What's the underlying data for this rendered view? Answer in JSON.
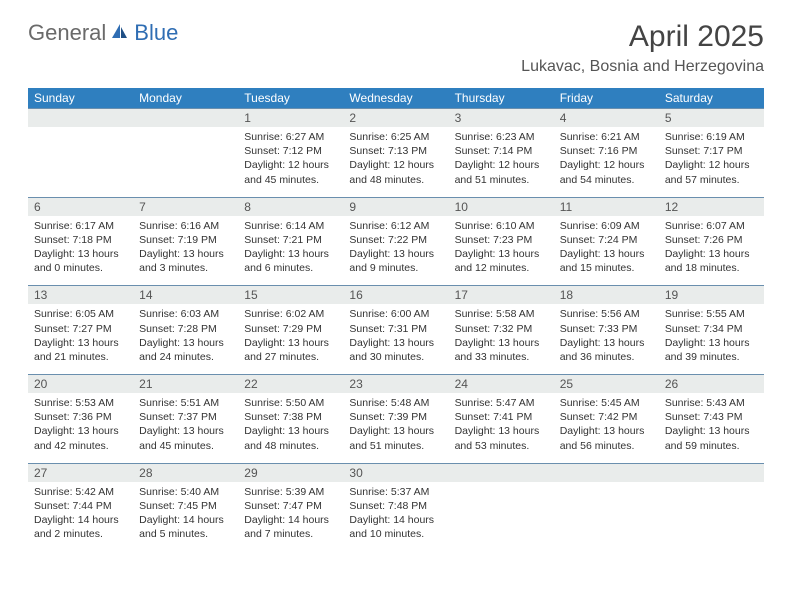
{
  "brand": {
    "part1": "General",
    "part2": "Blue"
  },
  "title": "April 2025",
  "location": "Lukavac, Bosnia and Herzegovina",
  "colors": {
    "header_bg": "#2f7fbf",
    "daynum_bg": "#e9eceb",
    "row_border": "#6a8fae",
    "brand_gray": "#6a6a6a",
    "brand_blue": "#2f6db3"
  },
  "weekdays": [
    "Sunday",
    "Monday",
    "Tuesday",
    "Wednesday",
    "Thursday",
    "Friday",
    "Saturday"
  ],
  "weeks": [
    {
      "nums": [
        "",
        "",
        "1",
        "2",
        "3",
        "4",
        "5"
      ],
      "cells": [
        null,
        null,
        {
          "sr": "6:27 AM",
          "ss": "7:12 PM",
          "dl": "12 hours and 45 minutes."
        },
        {
          "sr": "6:25 AM",
          "ss": "7:13 PM",
          "dl": "12 hours and 48 minutes."
        },
        {
          "sr": "6:23 AM",
          "ss": "7:14 PM",
          "dl": "12 hours and 51 minutes."
        },
        {
          "sr": "6:21 AM",
          "ss": "7:16 PM",
          "dl": "12 hours and 54 minutes."
        },
        {
          "sr": "6:19 AM",
          "ss": "7:17 PM",
          "dl": "12 hours and 57 minutes."
        }
      ]
    },
    {
      "nums": [
        "6",
        "7",
        "8",
        "9",
        "10",
        "11",
        "12"
      ],
      "cells": [
        {
          "sr": "6:17 AM",
          "ss": "7:18 PM",
          "dl": "13 hours and 0 minutes."
        },
        {
          "sr": "6:16 AM",
          "ss": "7:19 PM",
          "dl": "13 hours and 3 minutes."
        },
        {
          "sr": "6:14 AM",
          "ss": "7:21 PM",
          "dl": "13 hours and 6 minutes."
        },
        {
          "sr": "6:12 AM",
          "ss": "7:22 PM",
          "dl": "13 hours and 9 minutes."
        },
        {
          "sr": "6:10 AM",
          "ss": "7:23 PM",
          "dl": "13 hours and 12 minutes."
        },
        {
          "sr": "6:09 AM",
          "ss": "7:24 PM",
          "dl": "13 hours and 15 minutes."
        },
        {
          "sr": "6:07 AM",
          "ss": "7:26 PM",
          "dl": "13 hours and 18 minutes."
        }
      ]
    },
    {
      "nums": [
        "13",
        "14",
        "15",
        "16",
        "17",
        "18",
        "19"
      ],
      "cells": [
        {
          "sr": "6:05 AM",
          "ss": "7:27 PM",
          "dl": "13 hours and 21 minutes."
        },
        {
          "sr": "6:03 AM",
          "ss": "7:28 PM",
          "dl": "13 hours and 24 minutes."
        },
        {
          "sr": "6:02 AM",
          "ss": "7:29 PM",
          "dl": "13 hours and 27 minutes."
        },
        {
          "sr": "6:00 AM",
          "ss": "7:31 PM",
          "dl": "13 hours and 30 minutes."
        },
        {
          "sr": "5:58 AM",
          "ss": "7:32 PM",
          "dl": "13 hours and 33 minutes."
        },
        {
          "sr": "5:56 AM",
          "ss": "7:33 PM",
          "dl": "13 hours and 36 minutes."
        },
        {
          "sr": "5:55 AM",
          "ss": "7:34 PM",
          "dl": "13 hours and 39 minutes."
        }
      ]
    },
    {
      "nums": [
        "20",
        "21",
        "22",
        "23",
        "24",
        "25",
        "26"
      ],
      "cells": [
        {
          "sr": "5:53 AM",
          "ss": "7:36 PM",
          "dl": "13 hours and 42 minutes."
        },
        {
          "sr": "5:51 AM",
          "ss": "7:37 PM",
          "dl": "13 hours and 45 minutes."
        },
        {
          "sr": "5:50 AM",
          "ss": "7:38 PM",
          "dl": "13 hours and 48 minutes."
        },
        {
          "sr": "5:48 AM",
          "ss": "7:39 PM",
          "dl": "13 hours and 51 minutes."
        },
        {
          "sr": "5:47 AM",
          "ss": "7:41 PM",
          "dl": "13 hours and 53 minutes."
        },
        {
          "sr": "5:45 AM",
          "ss": "7:42 PM",
          "dl": "13 hours and 56 minutes."
        },
        {
          "sr": "5:43 AM",
          "ss": "7:43 PM",
          "dl": "13 hours and 59 minutes."
        }
      ]
    },
    {
      "nums": [
        "27",
        "28",
        "29",
        "30",
        "",
        "",
        ""
      ],
      "cells": [
        {
          "sr": "5:42 AM",
          "ss": "7:44 PM",
          "dl": "14 hours and 2 minutes."
        },
        {
          "sr": "5:40 AM",
          "ss": "7:45 PM",
          "dl": "14 hours and 5 minutes."
        },
        {
          "sr": "5:39 AM",
          "ss": "7:47 PM",
          "dl": "14 hours and 7 minutes."
        },
        {
          "sr": "5:37 AM",
          "ss": "7:48 PM",
          "dl": "14 hours and 10 minutes."
        },
        null,
        null,
        null
      ]
    }
  ],
  "labels": {
    "sunrise": "Sunrise:",
    "sunset": "Sunset:",
    "daylight": "Daylight:"
  }
}
